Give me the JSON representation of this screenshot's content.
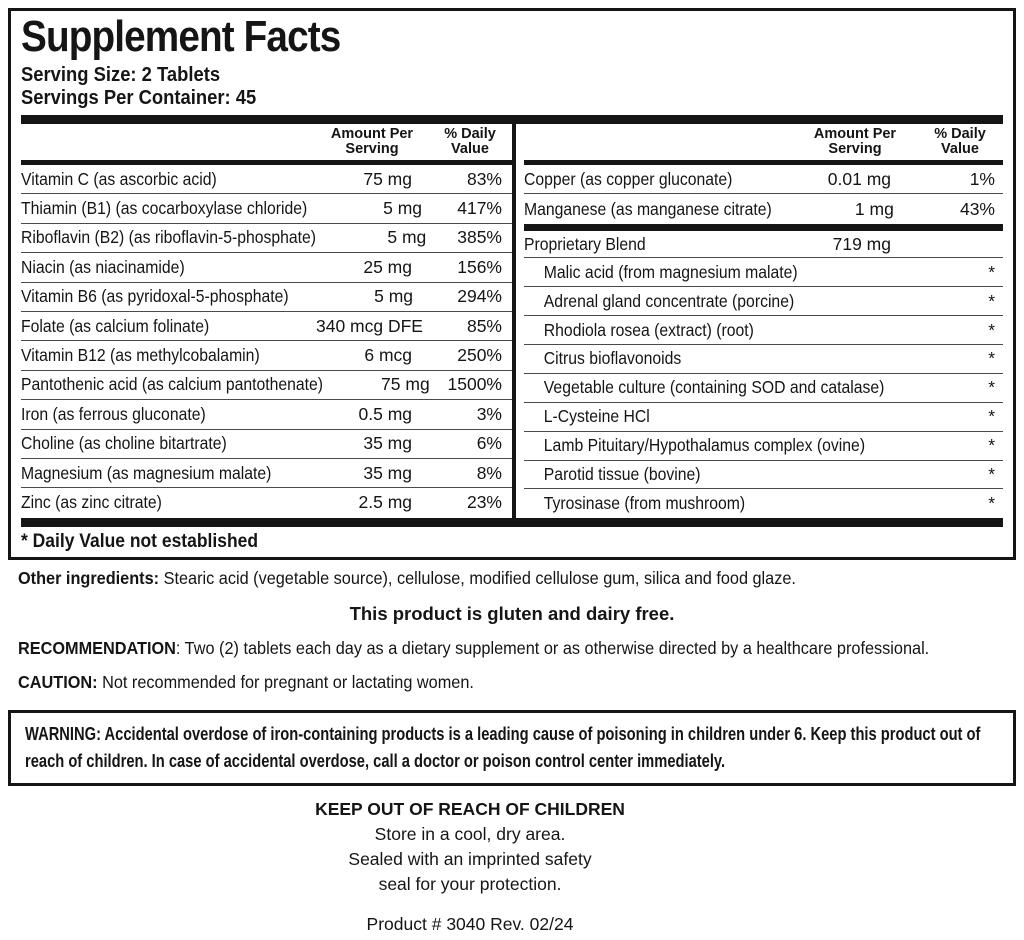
{
  "colors": {
    "ink": "#151515",
    "background": "#ffffff"
  },
  "panel": {
    "title": "Supplement Facts",
    "serving_size": "Serving Size: 2 Tablets",
    "servings_per_container": "Servings Per Container: 45",
    "columns": {
      "amount_header": "Amount Per Serving",
      "dv_header": "% Daily Value"
    },
    "left_rows": [
      {
        "label": "Vitamin C (as ascorbic acid)",
        "amount": "75 mg",
        "dv": "83%"
      },
      {
        "label": "Thiamin (B1) (as cocarboxylase chloride)",
        "amount": "5 mg",
        "dv": "417%"
      },
      {
        "label": "Riboflavin (B2) (as riboflavin-5-phosphate)",
        "amount": "5 mg",
        "dv": "385%"
      },
      {
        "label": "Niacin (as niacinamide)",
        "amount": "25 mg",
        "dv": "156%"
      },
      {
        "label": "Vitamin B6 (as pyridoxal-5-phosphate)",
        "amount": "5 mg",
        "dv": "294%"
      },
      {
        "label": "Folate (as calcium folinate)",
        "amount": "340 mcg DFE",
        "dv": "85%"
      },
      {
        "label": "Vitamin B12 (as methylcobalamin)",
        "amount": "6 mcg",
        "dv": "250%"
      },
      {
        "label": "Pantothenic acid (as calcium pantothenate)",
        "amount": "75 mg",
        "dv": "1500%"
      },
      {
        "label": "Iron (as ferrous gluconate)",
        "amount": "0.5 mg",
        "dv": "3%"
      },
      {
        "label": "Choline (as choline bitartrate)",
        "amount": "35 mg",
        "dv": "6%"
      },
      {
        "label": "Magnesium (as magnesium malate)",
        "amount": "35 mg",
        "dv": "8%"
      },
      {
        "label": "Zinc (as zinc citrate)",
        "amount": "2.5 mg",
        "dv": "23%"
      }
    ],
    "right_rows": [
      {
        "label": "Copper (as copper gluconate)",
        "amount": "0.01 mg",
        "dv": "1%"
      },
      {
        "label": "Manganese (as manganese citrate)",
        "amount": "1 mg",
        "dv": "43%"
      }
    ],
    "blend": {
      "label": "Proprietary Blend",
      "amount": "719 mg",
      "dv_symbol": "*",
      "items": [
        "Malic acid (from magnesium malate)",
        "Adrenal gland concentrate (porcine)",
        "Rhodiola rosea (extract) (root)",
        "Citrus bioflavonoids",
        "Vegetable culture (containing SOD and catalase)",
        "L-Cysteine HCl",
        "Lamb Pituitary/Hypothalamus complex (ovine)",
        "Parotid tissue (bovine)",
        "Tyrosinase (from mushroom)"
      ]
    },
    "footnote": "* Daily Value not established"
  },
  "notes": {
    "other_ingredients": {
      "label": "Other ingredients:",
      "text": " Stearic acid (vegetable source), cellulose, modified cellulose gum, silica and food glaze."
    },
    "gluten_dairy": "This product is gluten and dairy free.",
    "recommendation": {
      "label": "RECOMMENDATION",
      "text": ": Two (2) tablets each day as a dietary supplement or as otherwise directed by a healthcare professional."
    },
    "caution": {
      "label": "CAUTION:",
      "text": " Not recommended for pregnant or lactating women."
    },
    "warning": {
      "label": "WARNING:",
      "text": " Accidental overdose of iron-containing products is a leading cause of poisoning in children under 6. Keep this product out of reach of children. In case of accidental overdose, call a doctor or poison control center immediately."
    },
    "keep_out": "KEEP OUT OF REACH OF CHILDREN",
    "storage_lines": [
      "Store in a cool, dry area.",
      "Sealed with an imprinted safety",
      "seal for your protection."
    ],
    "product_info": "Product # 3040  Rev. 02/24"
  }
}
